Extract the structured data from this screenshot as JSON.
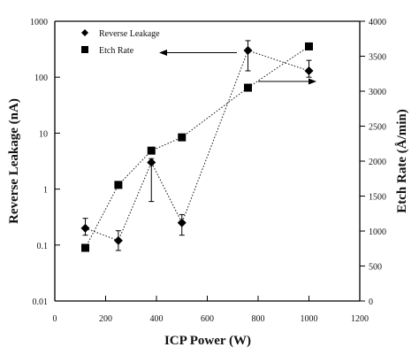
{
  "chart_data": {
    "type": "line",
    "x": [
      120,
      250,
      380,
      500,
      760,
      1000
    ],
    "xlabel": "ICP Power (W)",
    "xlim": [
      0,
      1200
    ],
    "xticks": [
      "0",
      "200",
      "400",
      "600",
      "800",
      "1000",
      "1200"
    ],
    "series": [
      {
        "name": "Reverse Leakage",
        "axis": "left",
        "marker": "diamond",
        "line": "dotted",
        "values": [
          0.2,
          0.12,
          3,
          0.25,
          300,
          130
        ],
        "error_bars": [
          [
            0.15,
            0.3
          ],
          [
            0.08,
            0.18
          ],
          [
            0.6,
            3.5
          ],
          [
            0.15,
            0.35
          ],
          [
            130,
            450
          ],
          [
            100,
            200
          ]
        ]
      },
      {
        "name": "Etch Rate",
        "axis": "right",
        "marker": "square",
        "line": "dotted",
        "values": [
          760,
          1660,
          2150,
          2340,
          3050,
          3640
        ]
      }
    ],
    "left_axis": {
      "label": "Reverse Leakage (nA)",
      "scale": "log",
      "range": [
        0.01,
        1000
      ],
      "ticks": [
        "0.01",
        "0.1",
        "1",
        "10",
        "100",
        "1000"
      ]
    },
    "right_axis": {
      "label": "Etch Rate (Å/min)",
      "scale": "linear",
      "range": [
        0,
        4000
      ],
      "ticks": [
        "0",
        "500",
        "1000",
        "1500",
        "2000",
        "2500",
        "3000",
        "3500",
        "4000"
      ]
    },
    "legend_position": "top-left",
    "annotations": [
      "left-pointing arrow indicates left axis",
      "right-pointing arrow indicates right axis"
    ],
    "grid": false
  }
}
